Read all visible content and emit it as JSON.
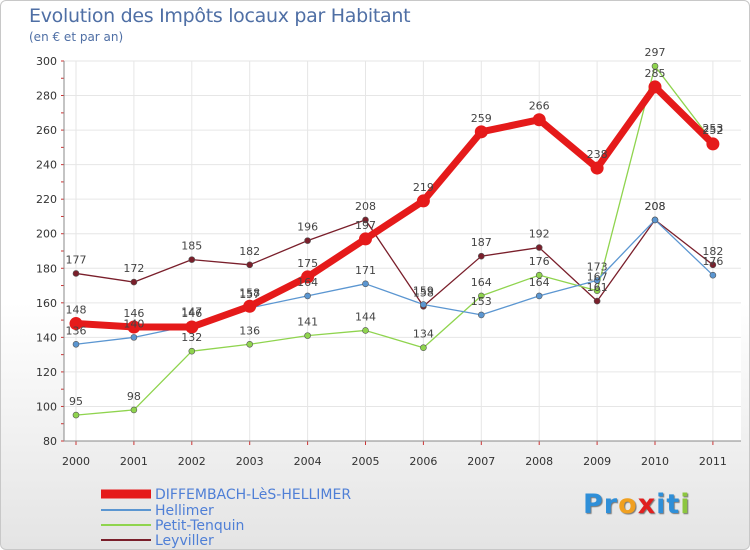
{
  "chart_data": {
    "type": "line",
    "title": "Evolution des Impôts locaux par Habitant",
    "subtitle": "(en € et par an)",
    "categories": [
      "2000",
      "2001",
      "2002",
      "2003",
      "2004",
      "2005",
      "2006",
      "2007",
      "2008",
      "2009",
      "2010",
      "2011"
    ],
    "ylim": [
      80,
      300
    ],
    "yticks": [
      80,
      100,
      120,
      140,
      160,
      180,
      200,
      220,
      240,
      260,
      280,
      300
    ],
    "grid": true,
    "legend_position": "bottom-left",
    "series": [
      {
        "name": "DIFFEMBACH-LèS-HELLIMER",
        "color": "#e51a1a",
        "values": [
          148,
          146,
          146,
          158,
          175,
          197,
          219,
          259,
          266,
          238,
          285,
          252
        ]
      },
      {
        "name": "Hellimer",
        "color": "#5b96d1",
        "values": [
          136,
          140,
          147,
          157,
          164,
          171,
          159,
          153,
          164,
          173,
          208,
          176
        ]
      },
      {
        "name": "Petit-Tenquin",
        "color": "#8fd44e",
        "values": [
          95,
          98,
          132,
          136,
          141,
          144,
          134,
          164,
          176,
          167,
          297,
          253
        ]
      },
      {
        "name": "Leyviller",
        "color": "#7a1f2b",
        "values": [
          177,
          172,
          185,
          182,
          196,
          208,
          158,
          187,
          192,
          161,
          208,
          182
        ]
      }
    ]
  },
  "brand": {
    "letters": [
      "P",
      "r",
      "o",
      "x",
      "i",
      "t",
      "i"
    ],
    "colors": [
      "#2f8fd8",
      "#2f8fd8",
      "#f0a020",
      "#e02020",
      "#2f8fd8",
      "#2f8fd8",
      "#8cc63f"
    ]
  }
}
